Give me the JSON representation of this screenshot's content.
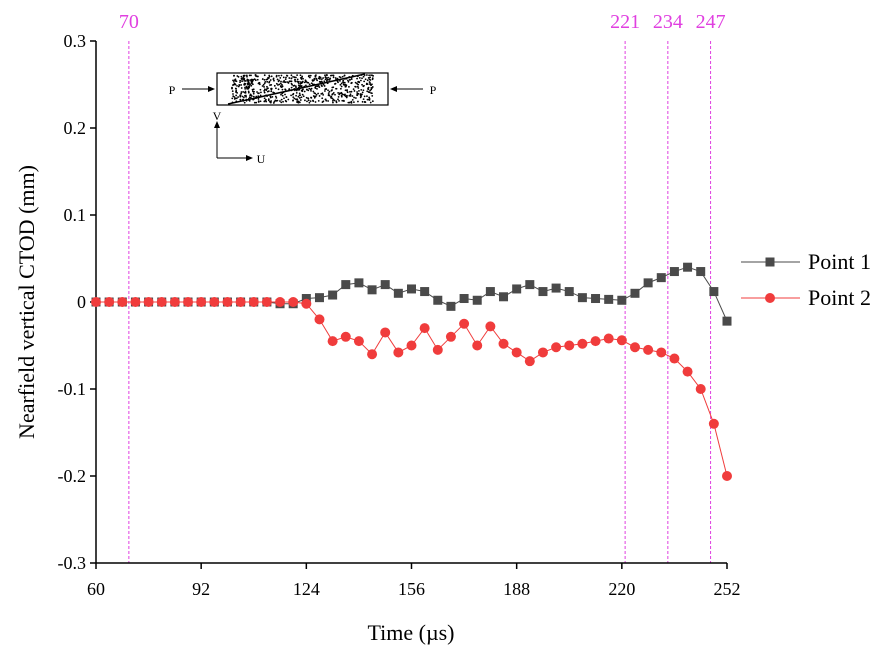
{
  "chart_data": {
    "type": "line",
    "xlabel": "Time (µs)",
    "ylabel": "Nearfield vertical CTOD (mm)",
    "x": [
      60,
      64,
      68,
      72,
      76,
      80,
      84,
      88,
      92,
      96,
      100,
      104,
      108,
      112,
      116,
      120,
      124,
      128,
      132,
      136,
      140,
      144,
      148,
      152,
      156,
      160,
      164,
      168,
      172,
      176,
      180,
      184,
      188,
      192,
      196,
      200,
      204,
      208,
      212,
      216,
      220,
      224,
      228,
      232,
      236,
      240,
      244,
      248,
      252
    ],
    "series": [
      {
        "name": "Point 1",
        "color": "#4a4a4a",
        "marker": "square",
        "values": [
          0,
          0,
          0,
          0,
          0,
          0,
          0,
          0,
          0,
          0,
          0,
          0,
          0,
          0,
          -0.002,
          -0.002,
          0.004,
          0.005,
          0.008,
          0.02,
          0.022,
          0.014,
          0.02,
          0.01,
          0.015,
          0.012,
          0.002,
          -0.005,
          0.004,
          0.002,
          0.012,
          0.006,
          0.015,
          0.02,
          0.012,
          0.016,
          0.012,
          0.005,
          0.004,
          0.003,
          0.002,
          0.01,
          0.022,
          0.028,
          0.035,
          0.04,
          0.035,
          0.012,
          -0.022
        ]
      },
      {
        "name": "Point 2",
        "color": "#f03c3c",
        "marker": "circle",
        "values": [
          0,
          0,
          0,
          0,
          0,
          0,
          0,
          0,
          0,
          0,
          0,
          0,
          0,
          0,
          0,
          0,
          -0.002,
          -0.02,
          -0.045,
          -0.04,
          -0.045,
          -0.06,
          -0.035,
          -0.058,
          -0.05,
          -0.03,
          -0.055,
          -0.04,
          -0.025,
          -0.05,
          -0.028,
          -0.048,
          -0.058,
          -0.068,
          -0.058,
          -0.052,
          -0.05,
          -0.048,
          -0.045,
          -0.042,
          -0.044,
          -0.052,
          -0.055,
          -0.058,
          -0.065,
          -0.08,
          -0.1,
          -0.14,
          -0.2
        ]
      }
    ],
    "xlim": [
      60,
      252
    ],
    "xticks": [
      60,
      92,
      124,
      156,
      188,
      220,
      252
    ],
    "ylim": [
      -0.3,
      0.3
    ],
    "yticks": [
      -0.3,
      -0.2,
      -0.1,
      0,
      0.1,
      0.2,
      0.3
    ],
    "vlines": [
      70,
      221,
      234,
      247
    ],
    "vline_color": "#e040e0",
    "legend": "right",
    "inset": {
      "load_left": "P",
      "load_right": "P",
      "axis_v": "V",
      "axis_u": "U"
    }
  }
}
